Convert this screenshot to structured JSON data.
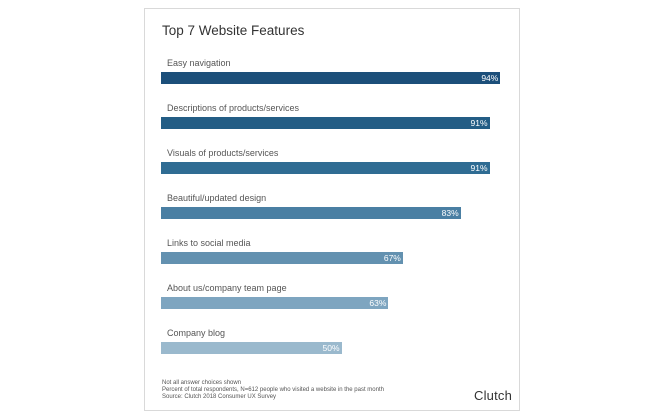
{
  "chart_data": {
    "type": "bar",
    "orientation": "horizontal",
    "title": "Top 7 Website Features",
    "categories": [
      "Easy navigation",
      "Descriptions of products/services",
      "Visuals of products/services",
      "Beautiful/updated design",
      "Links to social media",
      "About us/company team page",
      "Company blog"
    ],
    "values": [
      94,
      91,
      91,
      83,
      67,
      63,
      50
    ],
    "value_labels": [
      "94%",
      "91%",
      "91%",
      "83%",
      "67%",
      "63%",
      "50%"
    ],
    "bar_colors": [
      "#1c4f7a",
      "#235d85",
      "#2f6c93",
      "#4a7fa3",
      "#6391b0",
      "#7ea5c0",
      "#9ab9cd"
    ],
    "xlim": [
      0,
      100
    ],
    "xlabel": "",
    "ylabel": "",
    "grid": false,
    "legend": "none"
  },
  "footnotes": {
    "line1": "Not all answer choices shown",
    "line2": "Percent of total respondents, N=612 people who visited a website in the past month",
    "line3": "Source: Clutch 2018 Consumer UX Survey"
  },
  "brand": {
    "logo_text": "Clutch"
  }
}
